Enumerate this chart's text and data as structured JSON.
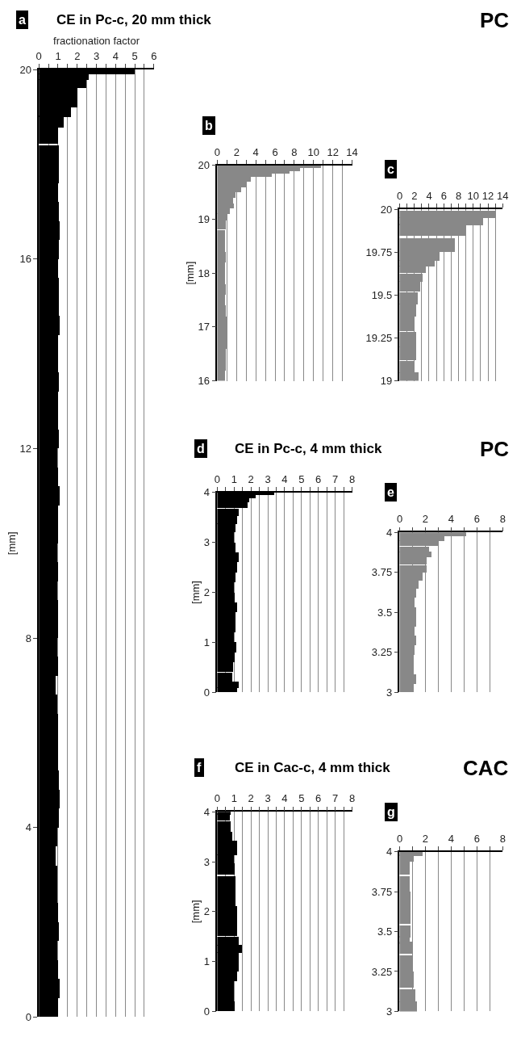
{
  "chart_data": [
    {
      "type": "bar",
      "orientation": "horizontal",
      "title": "CE in Pc-c, 20 mm thick",
      "xlabel": "fractionation factor",
      "ylabel": "[mm]",
      "color": "#000000",
      "grid": "x",
      "annotations": [
        "a",
        "PC"
      ],
      "x": [
        0.2,
        0.6,
        1.0,
        1.4,
        1.8,
        2.2,
        2.6,
        3.0,
        3.4,
        3.8,
        4.2,
        4.6,
        5.0,
        5.4,
        5.8,
        6.2,
        6.6,
        7.0,
        7.4,
        7.8,
        8.2,
        8.6,
        9.0,
        9.4,
        9.8,
        10.2,
        10.6,
        11.0,
        11.4,
        11.8,
        12.2,
        12.6,
        13.0,
        13.4,
        13.8,
        14.2,
        14.6,
        15.0,
        15.4,
        15.8,
        16.2,
        16.6,
        17.0,
        17.4,
        17.8,
        18.2,
        18.6,
        18.9,
        19.1,
        19.3,
        19.5,
        19.7,
        19.85,
        19.96
      ],
      "values": [
        1.0,
        1.1,
        1.0,
        0.95,
        1.05,
        1.0,
        0.95,
        0.95,
        0.9,
        0.95,
        1.05,
        1.1,
        1.05,
        1.0,
        1.0,
        1.0,
        0.95,
        0.9,
        1.0,
        0.95,
        1.0,
        1.0,
        0.95,
        1.0,
        0.95,
        1.0,
        1.0,
        1.1,
        1.0,
        0.95,
        1.05,
        1.0,
        1.0,
        1.05,
        1.0,
        1.0,
        1.1,
        1.05,
        1.05,
        1.0,
        1.05,
        1.1,
        1.05,
        1.0,
        1.05,
        1.05,
        1.0,
        1.3,
        1.7,
        2.0,
        2.0,
        2.5,
        2.6,
        5.0
      ],
      "xlim": [
        0,
        6
      ],
      "xticks": [
        0,
        {
          "value": 0.5,
          "label": null
        },
        1,
        {
          "value": 1.5,
          "label": null
        },
        2,
        {
          "value": 2.5,
          "label": null
        },
        3,
        {
          "value": 3.5,
          "label": null
        },
        4,
        {
          "value": 4.5,
          "label": null
        },
        5,
        {
          "value": 5.5,
          "label": null
        },
        6
      ],
      "ylim": [
        0,
        20
      ],
      "yticks": [
        0,
        4,
        8,
        12,
        16,
        20
      ]
    },
    {
      "type": "bar",
      "orientation": "horizontal",
      "ylabel": "[mm]",
      "color": "#888888",
      "grid": "x",
      "annotations": [
        "b"
      ],
      "x": [
        16.1,
        16.3,
        16.5,
        16.7,
        16.9,
        17.1,
        17.3,
        17.5,
        17.7,
        17.9,
        18.1,
        18.3,
        18.5,
        18.7,
        18.9,
        19.05,
        19.15,
        19.25,
        19.35,
        19.45,
        19.55,
        19.65,
        19.75,
        19.825,
        19.875,
        19.925,
        19.975
      ],
      "values": [
        0.85,
        0.9,
        0.95,
        1.0,
        1.1,
        1.0,
        0.95,
        0.85,
        0.9,
        0.85,
        0.8,
        0.9,
        0.85,
        0.85,
        0.9,
        1.0,
        1.3,
        1.8,
        1.7,
        1.9,
        2.5,
        3.0,
        3.5,
        5.7,
        7.5,
        8.6,
        10.8
      ],
      "xlim": [
        0,
        14
      ],
      "xticks": [
        0,
        {
          "value": 1,
          "label": null
        },
        2,
        {
          "value": 3,
          "label": null
        },
        4,
        {
          "value": 5,
          "label": null
        },
        6,
        {
          "value": 7,
          "label": null
        },
        8,
        {
          "value": 9,
          "label": null
        },
        10,
        {
          "value": 11,
          "label": null
        },
        12,
        {
          "value": 13,
          "label": null
        },
        14
      ],
      "ylim": [
        16,
        20
      ],
      "yticks": [
        16,
        17,
        18,
        19,
        20
      ]
    },
    {
      "type": "bar",
      "orientation": "horizontal",
      "color": "#888888",
      "grid": "x",
      "annotations": [
        "c"
      ],
      "x": [
        19.02,
        19.08,
        19.16,
        19.24,
        19.33,
        19.41,
        19.48,
        19.55,
        19.6,
        19.65,
        19.685,
        19.725,
        19.79,
        19.88,
        19.93,
        19.97
      ],
      "values": [
        2.6,
        2.1,
        2.3,
        2.3,
        2.1,
        2.3,
        2.5,
        2.9,
        3.2,
        3.6,
        4.8,
        5.5,
        7.6,
        9.1,
        11.4,
        13.1
      ],
      "xlim": [
        0,
        14
      ],
      "xticks": [
        0,
        {
          "value": 1,
          "label": null
        },
        2,
        {
          "value": 3,
          "label": null
        },
        4,
        {
          "value": 5,
          "label": null
        },
        6,
        {
          "value": 7,
          "label": null
        },
        8,
        {
          "value": 9,
          "label": null
        },
        10,
        {
          "value": 11,
          "label": null
        },
        12,
        {
          "value": 13,
          "label": null
        },
        14
      ],
      "ylim": [
        19,
        20
      ],
      "yticks": [
        19,
        19.25,
        19.5,
        19.75,
        20
      ]
    },
    {
      "type": "bar",
      "orientation": "horizontal",
      "title": "CE in Pc-c, 4 mm thick",
      "ylabel": "[mm]",
      "color": "#000000",
      "grid": "x",
      "annotations": [
        "d",
        "PC"
      ],
      "x": [
        0.05,
        0.15,
        0.3,
        0.5,
        0.7,
        0.9,
        1.1,
        1.3,
        1.5,
        1.7,
        1.9,
        2.1,
        2.3,
        2.5,
        2.7,
        2.9,
        3.1,
        3.3,
        3.45,
        3.6,
        3.75,
        3.85,
        3.925,
        3.975
      ],
      "values": [
        1.2,
        1.3,
        0.9,
        0.95,
        1.05,
        1.15,
        1.0,
        1.1,
        1.1,
        1.2,
        1.05,
        1.0,
        1.1,
        1.2,
        1.3,
        1.1,
        1.0,
        1.1,
        1.2,
        1.3,
        1.8,
        1.9,
        2.3,
        3.4
      ],
      "xlim": [
        0,
        8
      ],
      "xticks": [
        0,
        {
          "value": 0.5,
          "label": null
        },
        1,
        {
          "value": 1.5,
          "label": null
        },
        2,
        {
          "value": 2.5,
          "label": null
        },
        3,
        {
          "value": 3.5,
          "label": null
        },
        4,
        {
          "value": 4.5,
          "label": null
        },
        5,
        {
          "value": 5.5,
          "label": null
        },
        6,
        {
          "value": 6.5,
          "label": null
        },
        7,
        {
          "value": 7.5,
          "label": null
        },
        8
      ],
      "ylim": [
        0,
        4
      ],
      "yticks": [
        0,
        1,
        2,
        3,
        4
      ]
    },
    {
      "type": "bar",
      "orientation": "horizontal",
      "color": "#888888",
      "grid": "x",
      "annotations": [
        "e"
      ],
      "x": [
        3.02,
        3.08,
        3.14,
        3.2,
        3.26,
        3.32,
        3.38,
        3.44,
        3.5,
        3.56,
        3.62,
        3.67,
        3.72,
        3.77,
        3.82,
        3.86,
        3.89,
        3.93,
        3.96,
        3.99
      ],
      "values": [
        1.1,
        1.3,
        1.1,
        1.1,
        1.2,
        1.3,
        1.2,
        1.3,
        1.3,
        1.2,
        1.3,
        1.5,
        1.8,
        2.1,
        2.1,
        2.5,
        2.3,
        3.0,
        3.5,
        5.2
      ],
      "xlim": [
        0,
        8
      ],
      "xticks": [
        0,
        {
          "value": 1,
          "label": null
        },
        2,
        {
          "value": 3,
          "label": null
        },
        4,
        {
          "value": 5,
          "label": null
        },
        6,
        {
          "value": 7,
          "label": null
        },
        8
      ],
      "ylim": [
        3,
        4
      ],
      "yticks": [
        3,
        3.25,
        3.5,
        3.75,
        4
      ]
    },
    {
      "type": "bar",
      "orientation": "horizontal",
      "title": "CE in Cac-c, 4 mm thick",
      "ylabel": "[mm]",
      "color": "#000000",
      "grid": "x",
      "annotations": [
        "f",
        "CAC"
      ],
      "x": [
        0.1,
        0.3,
        0.5,
        0.7,
        0.9,
        1.1,
        1.25,
        1.4,
        1.6,
        1.8,
        2.0,
        2.2,
        2.4,
        2.6,
        2.85,
        3.05,
        3.2,
        3.35,
        3.5,
        3.7,
        3.9,
        3.98
      ],
      "values": [
        1.05,
        1.0,
        1.0,
        1.2,
        1.3,
        1.3,
        1.5,
        1.3,
        1.2,
        1.2,
        1.2,
        1.1,
        1.1,
        1.1,
        1.05,
        1.0,
        1.2,
        1.2,
        0.9,
        0.8,
        0.75,
        0.8
      ],
      "xlim": [
        0,
        8
      ],
      "xticks": [
        0,
        {
          "value": 0.5,
          "label": null
        },
        1,
        {
          "value": 1.5,
          "label": null
        },
        2,
        {
          "value": 2.5,
          "label": null
        },
        3,
        {
          "value": 3.5,
          "label": null
        },
        4,
        {
          "value": 4.5,
          "label": null
        },
        5,
        {
          "value": 5.5,
          "label": null
        },
        6,
        {
          "value": 6.5,
          "label": null
        },
        7,
        {
          "value": 7.5,
          "label": null
        },
        8
      ],
      "ylim": [
        0,
        4
      ],
      "yticks": [
        0,
        1,
        2,
        3,
        4
      ]
    },
    {
      "type": "bar",
      "orientation": "horizontal",
      "color": "#888888",
      "grid": "x",
      "annotations": [
        "g"
      ],
      "x": [
        3.03,
        3.1,
        3.2,
        3.3,
        3.4,
        3.45,
        3.5,
        3.6,
        3.7,
        3.8,
        3.9,
        3.96,
        3.99
      ],
      "values": [
        1.4,
        1.25,
        1.15,
        1.0,
        1.0,
        0.8,
        0.9,
        0.9,
        0.9,
        0.8,
        0.8,
        1.1,
        1.8
      ],
      "xlim": [
        0,
        8
      ],
      "xticks": [
        0,
        {
          "value": 1,
          "label": null
        },
        2,
        {
          "value": 3,
          "label": null
        },
        4,
        {
          "value": 5,
          "label": null
        },
        6,
        {
          "value": 7,
          "label": null
        },
        8
      ],
      "ylim": [
        3,
        4
      ],
      "yticks": [
        3,
        3.25,
        3.5,
        3.75,
        4
      ]
    }
  ]
}
